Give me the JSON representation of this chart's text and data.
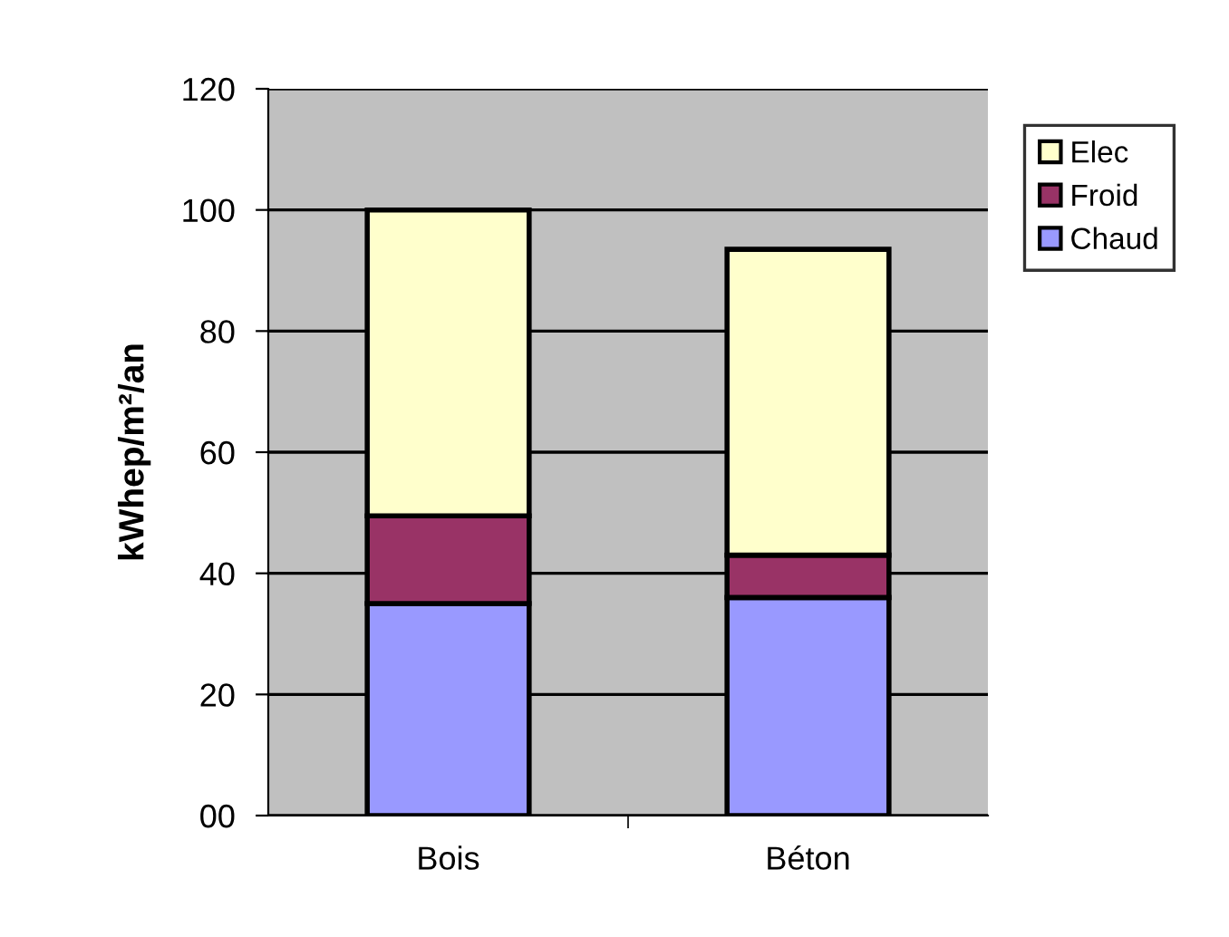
{
  "chart_data": {
    "type": "bar",
    "stacked": true,
    "ylabel": "kWhep/m²/an",
    "categories": [
      "Bois",
      "Béton"
    ],
    "series": [
      {
        "name": "Chaud",
        "color": "#9999ff",
        "values": [
          35,
          36
        ]
      },
      {
        "name": "Froid",
        "color": "#993366",
        "values": [
          14.5,
          7
        ]
      },
      {
        "name": "Elec",
        "color": "#ffffcc",
        "values": [
          50.5,
          50.5
        ]
      }
    ],
    "ylim": [
      0,
      120
    ],
    "yticks": [
      {
        "value": 0,
        "label": "00"
      },
      20,
      40,
      60,
      80,
      100,
      120
    ],
    "grid": "y",
    "legend": "right"
  }
}
